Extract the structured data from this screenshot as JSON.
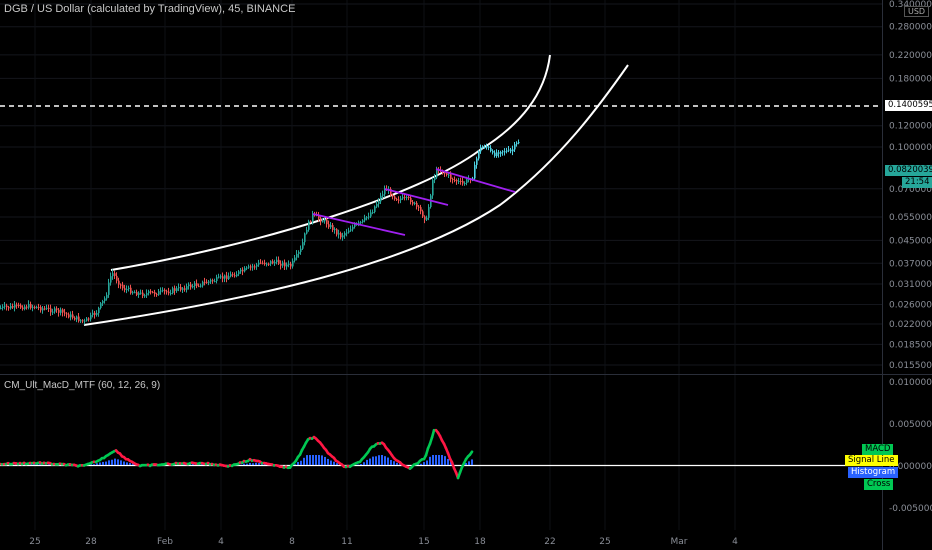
{
  "header": {
    "symbol_title": "DGB / US Dollar (calculated by TradingView), 45, BINANCE",
    "indicator_title": "CM_Ult_MacD_MTF (60, 12, 26, 9)",
    "currency_badge": "USD"
  },
  "price_axis": {
    "scale": "log",
    "ticks": [
      "0.34000000",
      "0.28000000",
      "0.22000000",
      "0.18000000",
      "0.12000000",
      "0.10000000",
      "0.07000000",
      "0.05500000",
      "0.04500000",
      "0.03700000",
      "0.03100000",
      "0.02600000",
      "0.02200000",
      "0.01850000",
      "0.01550000"
    ]
  },
  "price_tags": {
    "alert_level": "0.14005958",
    "last_price": "0.08200397",
    "countdown": "21:54"
  },
  "macd_axis": {
    "ticks": [
      "0.01000000",
      "0.00500000",
      "0.00000000",
      "-0.00500000"
    ]
  },
  "legend": {
    "macd": "MACD",
    "signal": "Signal Line",
    "histogram": "Histogram",
    "cross": "Cross"
  },
  "date_axis": {
    "labels": [
      "25",
      "28",
      "Feb",
      "4",
      "8",
      "11",
      "15",
      "18",
      "22",
      "25",
      "Mar",
      "4"
    ]
  },
  "colors": {
    "background": "#000000",
    "price_bull": "#26a69a",
    "price_bear": "#ef5350",
    "price_recent": "#4dd0e1",
    "channel": "#ffffff",
    "flags": "#a020f0",
    "macd_up": "#00c853",
    "macd_down": "#ff1744",
    "histogram": "#2962ff",
    "signal_tag": "#ffff00",
    "last_price_tag": "#26a69a"
  },
  "chart_data": {
    "type": "line",
    "title": "DGB / US Dollar (calculated by TradingView), 45, BINANCE",
    "yscale": "log",
    "ylim": [
      0.0145,
      0.34
    ],
    "series": [
      {
        "x": [
          "Jan 25",
          "Jan 26",
          "Jan 27",
          "Jan 28",
          "Jan 29",
          "Jan 30",
          "Feb 1",
          "Feb 3",
          "Feb 4",
          "Feb 6",
          "Feb 7",
          "Feb 8",
          "Feb 9",
          "Feb 10",
          "Feb 11",
          "Feb 12",
          "Feb 13",
          "Feb 14",
          "Feb 15",
          "Feb 16",
          "Feb 17",
          "Feb 18",
          "Feb 19",
          "Feb 20"
        ],
        "values": [
          0.024,
          0.024,
          0.0232,
          0.0222,
          0.03,
          0.0298,
          0.03,
          0.0305,
          0.0318,
          0.0345,
          0.036,
          0.0378,
          0.056,
          0.05,
          0.0515,
          0.069,
          0.064,
          0.0615,
          0.069,
          0.077,
          0.076,
          0.087,
          0.095,
          0.0985
        ]
      }
    ],
    "annotations": {
      "horizontal_line": 0.14005958,
      "channel": "curved ascending parallel channel",
      "flags": 4
    },
    "subchart": {
      "name": "CM_Ult_MacD_MTF (60, 12, 26, 9)",
      "ylim": [
        -0.0065,
        0.0102
      ],
      "macd": {
        "x": [
          "Jan 25",
          "Jan 27",
          "Jan 28",
          "Jan 30",
          "Feb 1",
          "Feb 3",
          "Feb 5",
          "Feb 7",
          "Feb 8",
          "Feb 9",
          "Feb 10",
          "Feb 11",
          "Feb 12",
          "Feb 13",
          "Feb 14",
          "Feb 15",
          "Feb 16",
          "Feb 17",
          "Feb 18"
        ],
        "values": [
          0.0001,
          0.0,
          -0.0001,
          0.002,
          0.0001,
          0.0001,
          0.0003,
          0.0005,
          0.0005,
          0.0032,
          0.0003,
          -0.0002,
          0.0025,
          0.0003,
          0.0001,
          0.0048,
          -0.0005,
          -0.0003,
          0.002
        ]
      }
    }
  }
}
